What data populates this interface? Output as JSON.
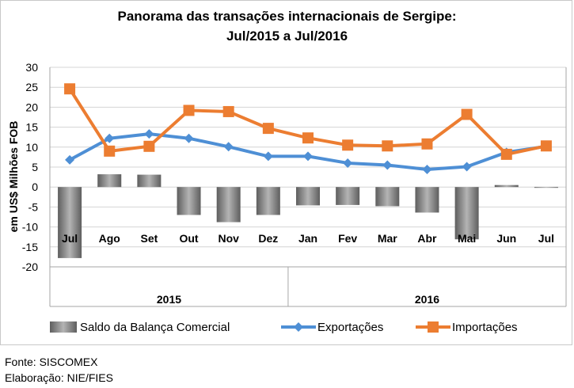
{
  "chart_data": {
    "type": "bar+line",
    "title": [
      "Panorama das transações internacionais de Sergipe:",
      "Jul/2015 a Jul/2016"
    ],
    "ylabel": "em US$ Milhões FOB",
    "ylim": [
      -20,
      30
    ],
    "ytick_step": 5,
    "grid": true,
    "categories": [
      "Jul",
      "Ago",
      "Set",
      "Out",
      "Nov",
      "Dez",
      "Jan",
      "Fev",
      "Mar",
      "Abr",
      "Mai",
      "Jun",
      "Jul"
    ],
    "year_groups": [
      {
        "label": "2015",
        "count": 6
      },
      {
        "label": "2016",
        "count": 7
      }
    ],
    "series": [
      {
        "name": "Saldo da Balança Comercial",
        "type": "bar",
        "color": "#8c8c8c",
        "values": [
          -17.8,
          3.2,
          3.1,
          -7.0,
          -8.8,
          -7.0,
          -4.6,
          -4.5,
          -4.8,
          -6.4,
          -13.1,
          0.5,
          -0.1
        ]
      },
      {
        "name": "Exportações",
        "type": "line",
        "color": "#4e8fd5",
        "values": [
          6.8,
          12.2,
          13.3,
          12.2,
          10.1,
          7.7,
          7.7,
          6.0,
          5.5,
          4.4,
          5.1,
          8.7,
          10.2
        ]
      },
      {
        "name": "Importações",
        "type": "line",
        "color": "#ec7d31",
        "values": [
          24.6,
          9.0,
          10.2,
          19.2,
          18.9,
          14.7,
          12.3,
          10.5,
          10.3,
          10.8,
          18.2,
          8.2,
          10.3
        ]
      }
    ]
  },
  "footer": {
    "source": "Fonte: SISCOMEX",
    "elaboration": "Elaboração: NIE/FIES"
  }
}
